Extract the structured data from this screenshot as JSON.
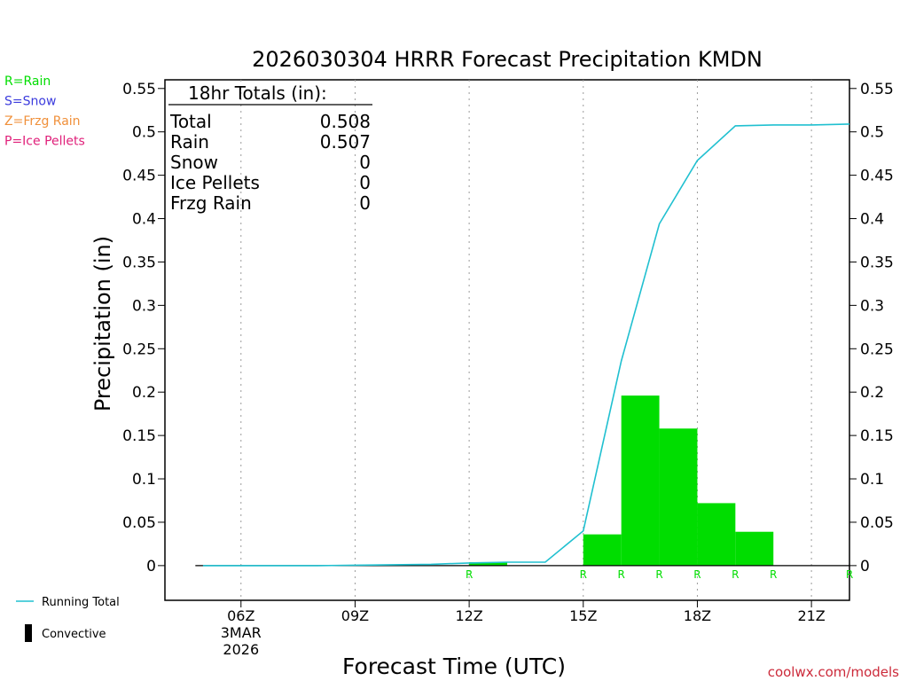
{
  "chart_data": {
    "type": "bar",
    "title": "2026030304 HRRR Forecast Precipitation KMDN",
    "xlabel": "Forecast Time (UTC)",
    "ylabel": "Precipitation (in)",
    "ylim": [
      -0.04,
      0.56
    ],
    "y_ticks": [
      0,
      0.05,
      0.1,
      0.15,
      0.2,
      0.25,
      0.3,
      0.35,
      0.4,
      0.45,
      0.5,
      0.55
    ],
    "y_tick_labels": [
      "0",
      "0.05",
      "0.1",
      "0.15",
      "0.2",
      "0.25",
      "0.3",
      "0.35",
      "0.4",
      "0.45",
      "0.5",
      "0.55"
    ],
    "xlim": [
      4,
      22
    ],
    "x_ticks": [
      {
        "hour": 6,
        "label": "06Z",
        "date_line1": "3MAR",
        "date_line2": "2026"
      },
      {
        "hour": 9,
        "label": "09Z"
      },
      {
        "hour": 12,
        "label": "12Z"
      },
      {
        "hour": 15,
        "label": "15Z"
      },
      {
        "hour": 18,
        "label": "18Z"
      },
      {
        "hour": 21,
        "label": "21Z"
      }
    ],
    "grid": "vertical dotted",
    "bars": [
      {
        "hour_start": 12,
        "hour_end": 13,
        "value": 0.004,
        "type": "R"
      },
      {
        "hour_start": 15,
        "hour_end": 16,
        "value": 0.036,
        "type": "R"
      },
      {
        "hour_start": 16,
        "hour_end": 17,
        "value": 0.196,
        "type": "R"
      },
      {
        "hour_start": 17,
        "hour_end": 18,
        "value": 0.158,
        "type": "R"
      },
      {
        "hour_start": 18,
        "hour_end": 19,
        "value": 0.072,
        "type": "R"
      },
      {
        "hour_start": 19,
        "hour_end": 20,
        "value": 0.039,
        "type": "R"
      }
    ],
    "precip_type_markers": [
      {
        "hour": 12,
        "label": "R"
      },
      {
        "hour": 15,
        "label": "R"
      },
      {
        "hour": 16,
        "label": "R"
      },
      {
        "hour": 17,
        "label": "R"
      },
      {
        "hour": 18,
        "label": "R"
      },
      {
        "hour": 19,
        "label": "R"
      },
      {
        "hour": 20,
        "label": "R"
      },
      {
        "hour": 22,
        "label": "R"
      }
    ],
    "running_total": {
      "name": "Running Total",
      "x": [
        5,
        6,
        7,
        8,
        9,
        10,
        11,
        12,
        13,
        14,
        15,
        16,
        17,
        18,
        19,
        20,
        21,
        22
      ],
      "y": [
        0,
        0,
        0,
        0,
        0.0005,
        0.001,
        0.0015,
        0.003,
        0.004,
        0.004,
        0.04,
        0.236,
        0.394,
        0.467,
        0.507,
        0.508,
        0.508,
        0.509
      ]
    },
    "totals_box": {
      "header": "18hr Totals (in):",
      "rows": [
        {
          "label": "Total",
          "value": "0.508"
        },
        {
          "label": "Rain",
          "value": "0.507"
        },
        {
          "label": "Snow",
          "value": "0"
        },
        {
          "label": "Ice Pellets",
          "value": "0"
        },
        {
          "label": "Frzg Rain",
          "value": "0"
        }
      ]
    },
    "type_legend": [
      {
        "label": "R=Rain",
        "color": "#00dd00"
      },
      {
        "label": "S=Snow",
        "color": "#3b3bdd"
      },
      {
        "label": "Z=Frzg Rain",
        "color": "#f0903a"
      },
      {
        "label": "P=Ice Pellets",
        "color": "#e0207a"
      }
    ],
    "bottom_legend": [
      {
        "label": "Running Total",
        "kind": "line",
        "color": "#20c0d0"
      },
      {
        "label": "Convective",
        "kind": "bar",
        "color": "#000000"
      }
    ],
    "colors": {
      "rain_bar": "#00dd00",
      "running_total": "#20c0d0",
      "marker": "#00dd00",
      "footer": "#cc2a3a"
    },
    "footer": "coolwx.com/models"
  }
}
